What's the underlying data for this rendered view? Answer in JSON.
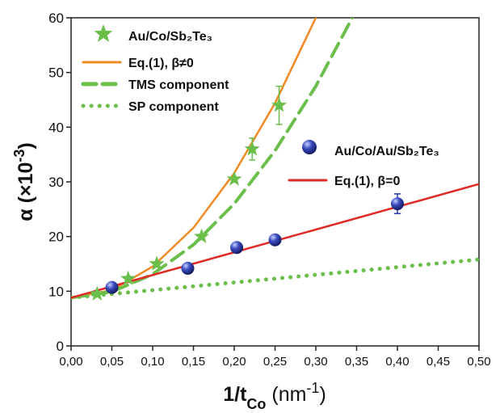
{
  "chart_data": {
    "type": "scatter-line",
    "x_label": [
      "1/t",
      "Co",
      " (nm",
      "-1",
      ")"
    ],
    "y_label": [
      "α (×10",
      "-3",
      ")"
    ],
    "xlim": [
      0,
      0.5
    ],
    "ylim": [
      0,
      60
    ],
    "xticks": [
      {
        "value": 0,
        "label": "0,00"
      },
      {
        "value": 0.05,
        "label": "0,05"
      },
      {
        "value": 0.1,
        "label": "0,10"
      },
      {
        "value": 0.15,
        "label": "0,15"
      },
      {
        "value": 0.2,
        "label": "0,20"
      },
      {
        "value": 0.25,
        "label": "0,25"
      },
      {
        "value": 0.3,
        "label": "0,30"
      },
      {
        "value": 0.35,
        "label": "0,35"
      },
      {
        "value": 0.4,
        "label": "0,40"
      },
      {
        "value": 0.45,
        "label": "0,45"
      },
      {
        "value": 0.5,
        "label": "0,50"
      }
    ],
    "yticks": [
      0,
      10,
      20,
      30,
      40,
      50,
      60
    ],
    "series": [
      {
        "name": "Au/Co/Sb₂Te₃",
        "style": "star",
        "color": "#6abf4b",
        "x": [
          0.032,
          0.07,
          0.105,
          0.16,
          0.2,
          0.222,
          0.255
        ],
        "values": [
          9.5,
          12.3,
          15,
          20,
          30.5,
          36,
          44
        ],
        "errors": [
          null,
          null,
          null,
          null,
          null,
          2,
          3.5
        ]
      },
      {
        "name": "Eq.(1), β≠0",
        "style": "solid",
        "color": "#f08a24",
        "x": [
          0,
          0.05,
          0.1,
          0.15,
          0.2,
          0.25,
          0.3
        ],
        "values": [
          8.8,
          10.2,
          14.5,
          21.6,
          31.6,
          44.4,
          60
        ]
      },
      {
        "name": "TMS component",
        "style": "dashed",
        "color": "#6abf4b",
        "x": [
          0,
          0.05,
          0.1,
          0.15,
          0.2,
          0.25,
          0.3,
          0.35
        ],
        "values": [
          8.8,
          9.9,
          13.1,
          18.5,
          26,
          35.7,
          47.5,
          61.5
        ]
      },
      {
        "name": "SP component",
        "style": "dotted",
        "color": "#6abf4b",
        "x": [
          0,
          0.5
        ],
        "values": [
          8.8,
          15.8
        ]
      },
      {
        "name": "Au/Co/Au/Sb₂Te₃",
        "style": "sphere",
        "color": "#2b3aa8",
        "x": [
          0.05,
          0.143,
          0.203,
          0.25,
          0.4
        ],
        "values": [
          10.7,
          14.2,
          18,
          19.4,
          26
        ],
        "errors": [
          null,
          null,
          null,
          null,
          1.8
        ]
      },
      {
        "name": "Eq.(1), β=0",
        "style": "solid",
        "color": "#e02a26",
        "x": [
          0,
          0.5
        ],
        "values": [
          8.8,
          29.6
        ]
      }
    ]
  }
}
